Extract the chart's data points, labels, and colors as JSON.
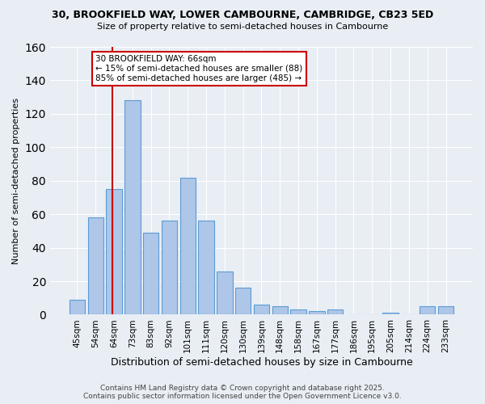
{
  "title1": "30, BROOKFIELD WAY, LOWER CAMBOURNE, CAMBRIDGE, CB23 5ED",
  "title2": "Size of property relative to semi-detached houses in Cambourne",
  "xlabel": "Distribution of semi-detached houses by size in Cambourne",
  "ylabel": "Number of semi-detached properties",
  "categories": [
    "45sqm",
    "54sqm",
    "64sqm",
    "73sqm",
    "83sqm",
    "92sqm",
    "101sqm",
    "111sqm",
    "120sqm",
    "130sqm",
    "139sqm",
    "148sqm",
    "158sqm",
    "167sqm",
    "177sqm",
    "186sqm",
    "195sqm",
    "205sqm",
    "214sqm",
    "224sqm",
    "233sqm"
  ],
  "values": [
    9,
    58,
    75,
    128,
    49,
    56,
    82,
    56,
    26,
    16,
    6,
    5,
    3,
    2,
    3,
    0,
    0,
    1,
    0,
    5,
    5
  ],
  "bar_color": "#aec6e8",
  "bar_edge_color": "#5b9bd5",
  "vline_index": 2,
  "vline_color": "#cc0000",
  "annotation_title": "30 BROOKFIELD WAY: 66sqm",
  "annotation_line1": "← 15% of semi-detached houses are smaller (88)",
  "annotation_line2": "85% of semi-detached houses are larger (485) →",
  "annotation_box_color": "#ffffff",
  "annotation_box_edge": "#cc0000",
  "footer1": "Contains HM Land Registry data © Crown copyright and database right 2025.",
  "footer2": "Contains public sector information licensed under the Open Government Licence v3.0.",
  "ylim": [
    0,
    160
  ],
  "background_color": "#e8eef4",
  "figsize": [
    6.0,
    5.0
  ],
  "dpi": 100
}
